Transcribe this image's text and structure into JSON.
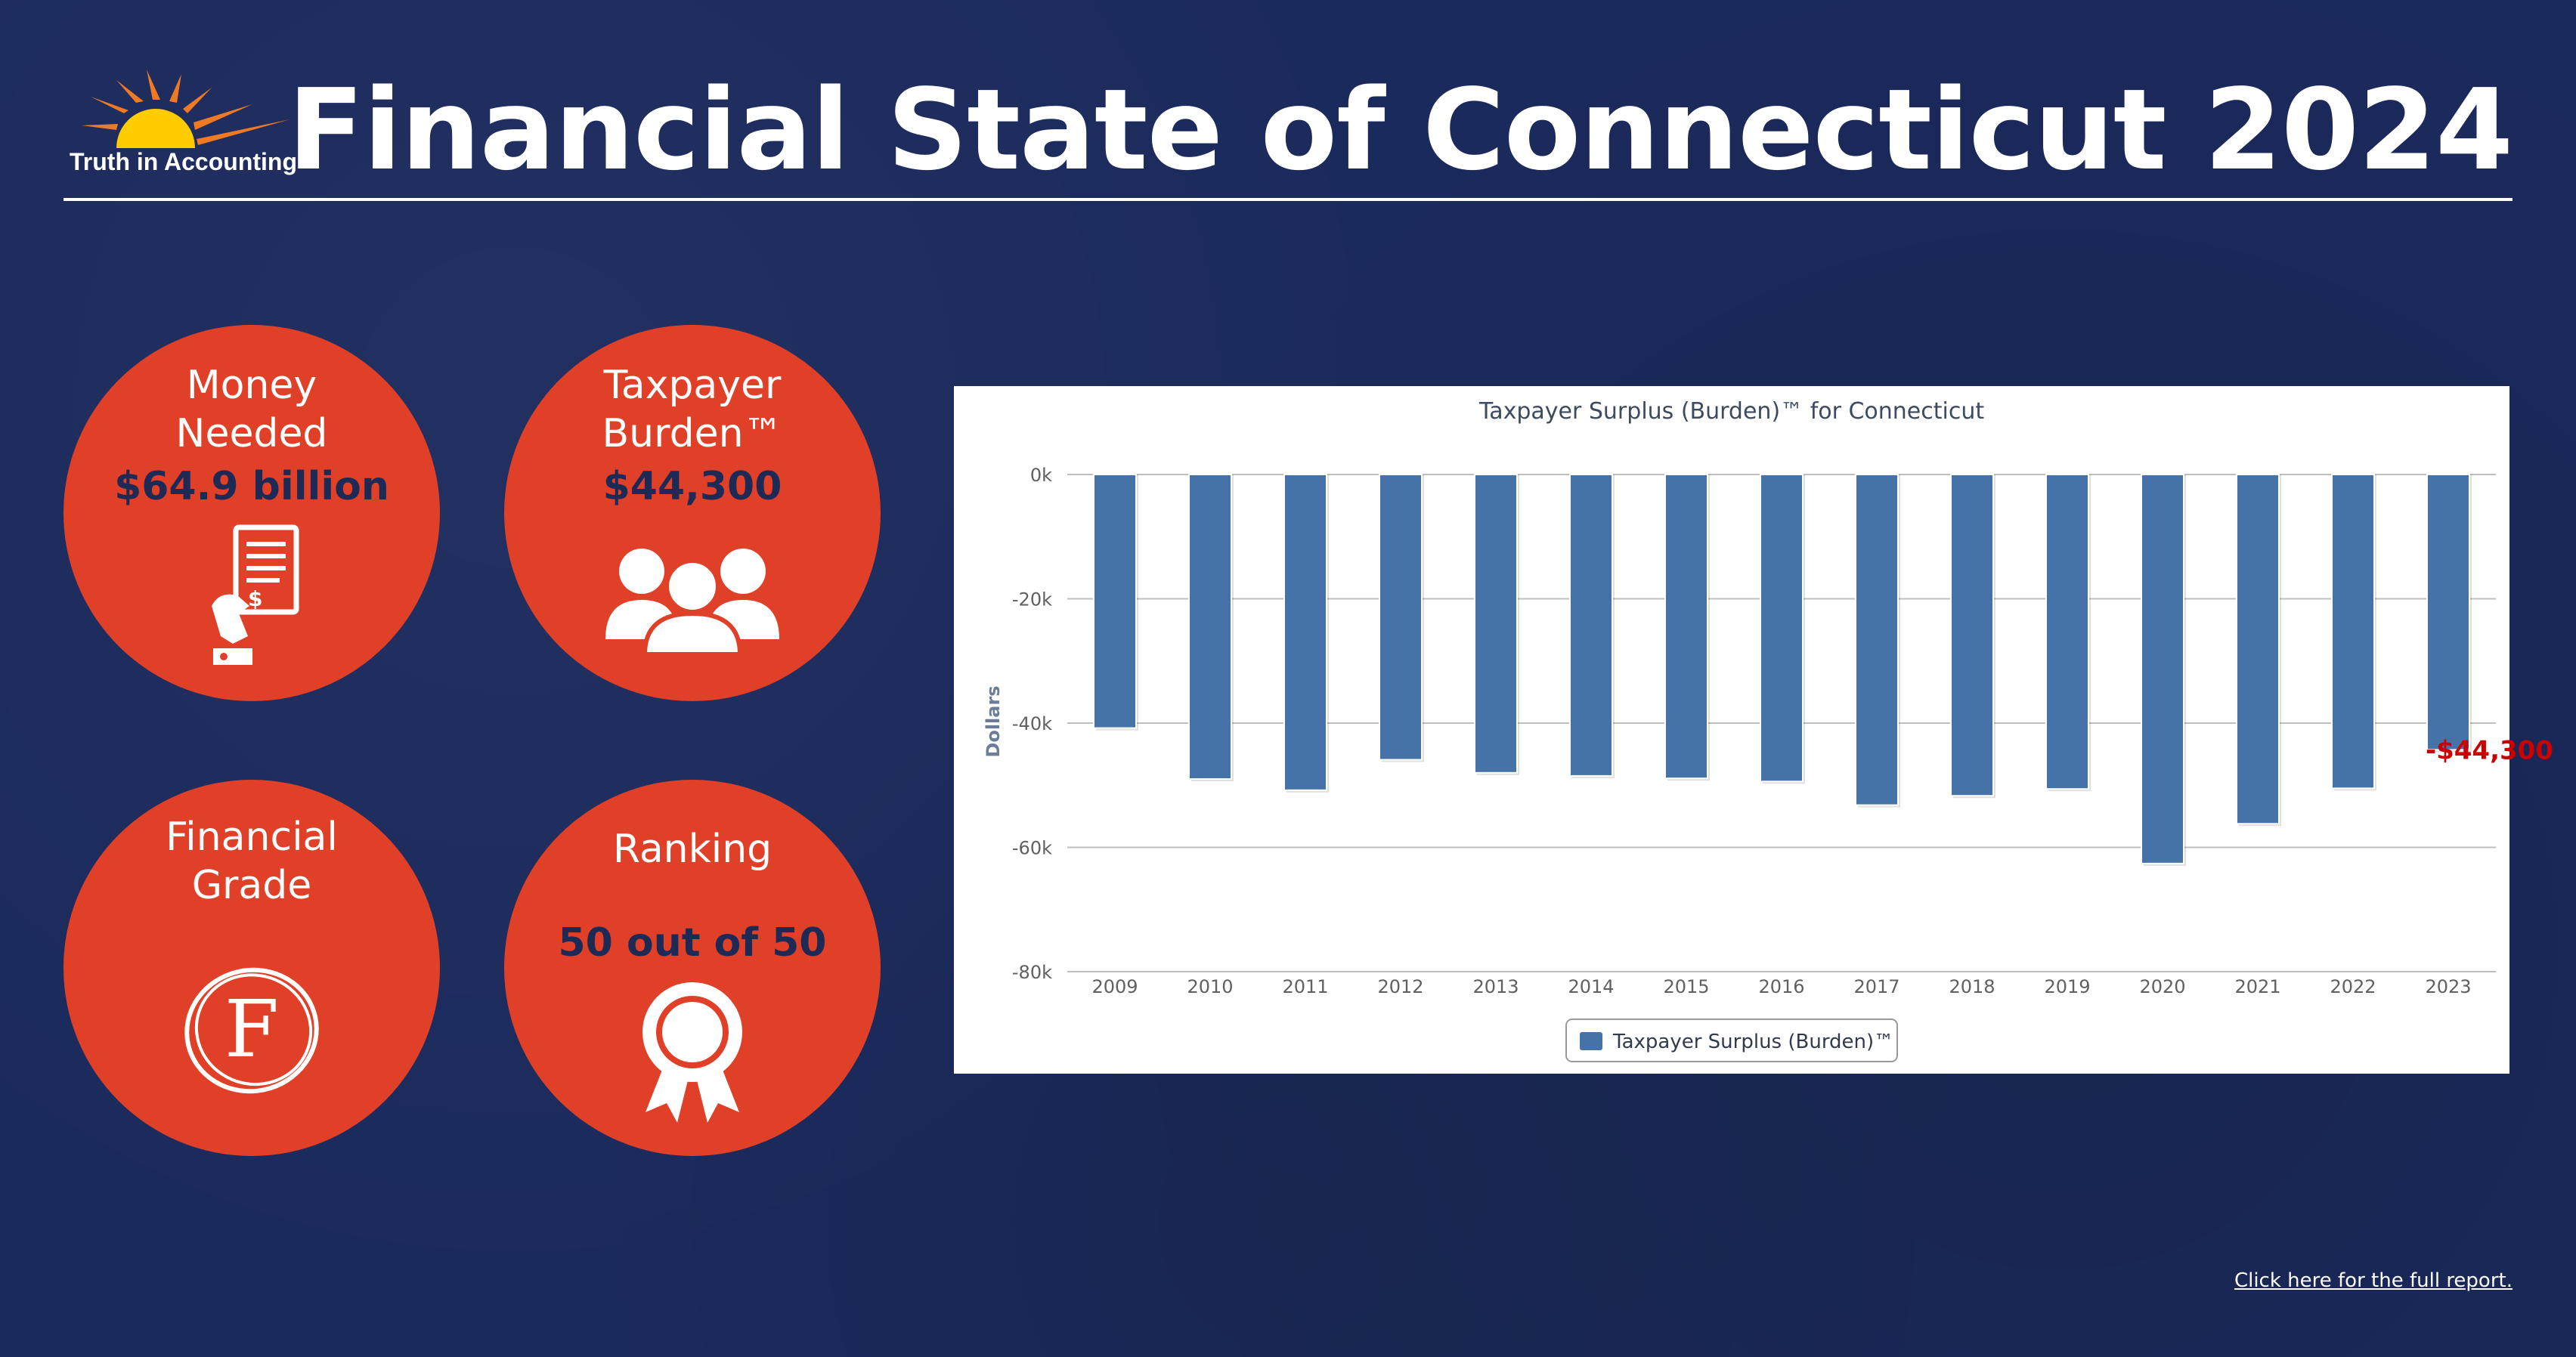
{
  "header": {
    "logo_text": "Truth in Accounting",
    "title": "Financial State of Connecticut 2024"
  },
  "stats": {
    "money_needed": {
      "label_line1": "Money",
      "label_line2": "Needed",
      "value": "$64.9 billion",
      "icon": "receipt-hand-icon"
    },
    "taxpayer_burden": {
      "label_line1": "Taxpayer",
      "label_line2": "Burden™",
      "value": "$44,300",
      "icon": "people-group-icon"
    },
    "financial_grade": {
      "label_line1": "Financial",
      "label_line2": "Grade",
      "grade": "F",
      "icon": "circled-grade-icon"
    },
    "ranking": {
      "label": "Ranking",
      "value": "50 out of 50",
      "icon": "award-ribbon-icon"
    }
  },
  "colors": {
    "background": "#1b2a5c",
    "circle": "#e04027",
    "value_text": "#1d2a55",
    "bar": "#4572a7",
    "annotation": "#cc0000"
  },
  "chart_data": {
    "type": "bar",
    "title": "Taxpayer Surplus (Burden)™ for Connecticut",
    "ylabel": "Dollars",
    "xlabel": "",
    "categories": [
      "2009",
      "2010",
      "2011",
      "2012",
      "2013",
      "2014",
      "2015",
      "2016",
      "2017",
      "2018",
      "2019",
      "2020",
      "2021",
      "2022",
      "2023"
    ],
    "series": [
      {
        "name": "Taxpayer Surplus (Burden)™",
        "values": [
          -40800,
          -49000,
          -50800,
          -45900,
          -48000,
          -48500,
          -48900,
          -49400,
          -53200,
          -51700,
          -50600,
          -62600,
          -56200,
          -50500,
          -44300
        ]
      }
    ],
    "ylim": [
      -80000,
      0
    ],
    "yticks": [
      {
        "value": 0,
        "label": "0k"
      },
      {
        "value": -20000,
        "label": "-20k"
      },
      {
        "value": -40000,
        "label": "-40k"
      },
      {
        "value": -60000,
        "label": "-60k"
      },
      {
        "value": -80000,
        "label": "-80k"
      }
    ],
    "annotation": {
      "category": "2023",
      "text": "-$44,300"
    },
    "grid": true,
    "legend": "bottom-center"
  },
  "footer": {
    "report_link": "Click here for the full report."
  }
}
